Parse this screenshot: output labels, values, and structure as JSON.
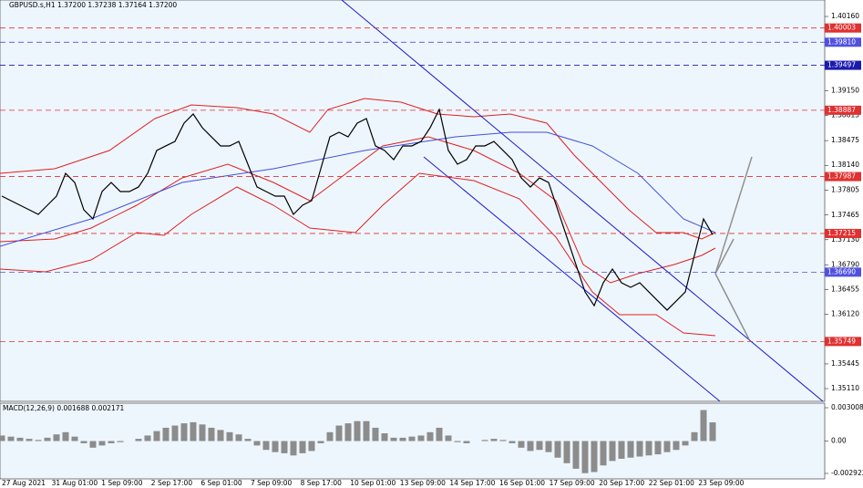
{
  "header": "GBPUSD.s,H1  1.37200 1.37238 1.37164 1.37200",
  "chart_data": [
    {
      "type": "line",
      "color": "#000000",
      "values": [
        1.37722,
        1.3766,
        1.37598,
        1.37536,
        1.37474,
        1.37598,
        1.37722,
        1.38031,
        1.37907,
        1.37536,
        1.37412,
        1.37784,
        1.37907,
        1.37784,
        1.37784,
        1.37846,
        1.38031,
        1.38341,
        1.38403,
        1.38464,
        1.38712,
        1.38836,
        1.3865,
        1.38526,
        1.38403,
        1.38403,
        1.38464,
        1.38155,
        1.37846,
        1.37784,
        1.37722,
        1.37722,
        1.37474,
        1.37598,
        1.3766,
        1.38093,
        1.38526,
        1.38588,
        1.38526,
        1.38712,
        1.38774,
        1.38403,
        1.38341,
        1.38217,
        1.38403,
        1.38403,
        1.38464,
        1.3865,
        1.38898,
        1.38341,
        1.38155,
        1.38217,
        1.38403,
        1.38403,
        1.38464,
        1.38341,
        1.38217,
        1.37969,
        1.37846,
        1.37969,
        1.37907,
        1.37536,
        1.37165,
        1.36793,
        1.36422,
        1.36236,
        1.36546,
        1.36732,
        1.36546,
        1.36484,
        1.36546,
        1.36422,
        1.36298,
        1.36175,
        1.36298,
        1.36422,
        1.36917,
        1.37412,
        1.372
      ],
      "ylim": [
        1.34937,
        1.40383
      ],
      "yticks": [
        {
          "value": 1.4016,
          "label": "1.40160"
        },
        {
          "value": 1.3915,
          "label": "1.39150"
        },
        {
          "value": 1.38815,
          "label": "1.38815"
        },
        {
          "value": 1.38475,
          "label": "1.38475"
        },
        {
          "value": 1.3814,
          "label": "1.38140"
        },
        {
          "value": 1.37805,
          "label": "1.37805"
        },
        {
          "value": 1.37465,
          "label": "1.37465"
        },
        {
          "value": 1.3713,
          "label": "1.37130"
        },
        {
          "value": 1.3679,
          "label": "1.36790"
        },
        {
          "value": 1.36455,
          "label": "1.36455"
        },
        {
          "value": 1.3612,
          "label": "1.36120"
        },
        {
          "value": 1.35445,
          "label": "1.35445"
        },
        {
          "value": 1.3511,
          "label": "1.35110"
        }
      ],
      "levels": [
        {
          "value": 1.40003,
          "label": "1.40003",
          "color": "#e03030"
        },
        {
          "value": 1.3981,
          "label": "1.39810",
          "color": "#5050e0"
        },
        {
          "value": 1.39497,
          "label": "1.39497",
          "color": "#1a1ab0"
        },
        {
          "value": 1.38887,
          "label": "1.38887",
          "color": "#e03030"
        },
        {
          "value": 1.37987,
          "label": "1.37987",
          "color": "#e03030"
        },
        {
          "value": 1.37215,
          "label": "1.37215",
          "color": "#e03030"
        },
        {
          "value": 1.3669,
          "label": "1.36690",
          "color": "#5050e0"
        },
        {
          "value": 1.35749,
          "label": "1.35749",
          "color": "#e03030"
        }
      ]
    },
    {
      "type": "bar",
      "title": "MACD(12,26,9) 0.001688 0.002171",
      "color": "#8c8c8c",
      "values": [
        0.0005,
        0.0004,
        0.0003,
        0.0002,
        0.0001,
        0.0003,
        0.0006,
        0.0008,
        0.0004,
        -0.0002,
        -0.0006,
        -0.0004,
        -0.0002,
        -0.0001,
        0,
        0.0002,
        0.0005,
        0.0009,
        0.0012,
        0.0014,
        0.0016,
        0.0017,
        0.0015,
        0.0012,
        0.001,
        0.0008,
        0.0006,
        0.0002,
        -0.0004,
        -0.0008,
        -0.001,
        -0.0011,
        -0.0013,
        -0.0011,
        -0.0009,
        -0.0002,
        0.0008,
        0.0014,
        0.0016,
        0.0018,
        0.0018,
        0.0012,
        0.0007,
        0.0003,
        0.0003,
        0.0004,
        0.0005,
        0.0008,
        0.0012,
        0.0005,
        -0.0001,
        -0.0002,
        0,
        0.0001,
        0.0002,
        0.0001,
        -0.0002,
        -0.0006,
        -0.0009,
        -0.0008,
        -0.001,
        -0.0015,
        -0.002,
        -0.0025,
        -0.0029,
        -0.0028,
        -0.0022,
        -0.0018,
        -0.0016,
        -0.0015,
        -0.0014,
        -0.0013,
        -0.0012,
        -0.001,
        -0.0008,
        -0.0004,
        0.0008,
        0.0028,
        0.001688
      ],
      "ylim": [
        -0.003416,
        0.00342
      ],
      "yticks": [
        0.003008,
        {
          "value": 0,
          "label": "0.00"
        },
        -0.002922
      ]
    }
  ],
  "x_labels": [
    "27 Aug 2021",
    "31 Aug 01:00",
    "1 Sep 09:00",
    "2 Sep 17:00",
    "6 Sep 01:00",
    "7 Sep 09:00",
    "8 Sep 17:00",
    "10 Sep 01:00",
    "13 Sep 09:00",
    "14 Sep 17:00",
    "16 Sep 01:00",
    "17 Sep 09:00",
    "20 Sep 17:00",
    "22 Sep 01:00",
    "23 Sep 09:00"
  ]
}
